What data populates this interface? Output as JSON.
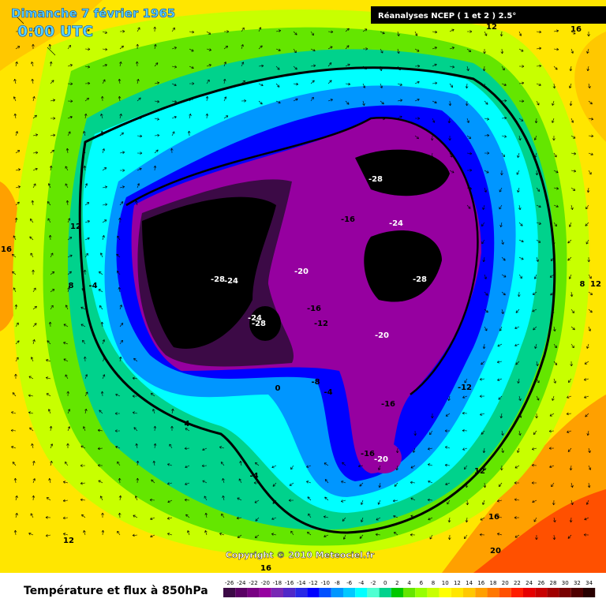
{
  "header": {
    "date": "Dimanche 7 février 1965",
    "time": "0:00 UTC",
    "source": "Réanalyses NCEP ( 1 et 2 ) 2.5°"
  },
  "copyright": "Copyright © 2010 Meteociel.fr",
  "footer_title": "Température et flux à 850hPa",
  "contour_labels": [
    -28,
    -16,
    -24,
    -28,
    -24,
    -20,
    -28,
    -16,
    -24,
    -28,
    -12,
    -20,
    -12,
    -16,
    -8,
    -4,
    0,
    4,
    -4,
    -16,
    -20,
    12,
    16,
    12,
    16,
    8,
    -4,
    8,
    12,
    12,
    16,
    20,
    12,
    16
  ],
  "colorbar": {
    "values": [
      -26,
      -24,
      -22,
      -20,
      -18,
      -16,
      -14,
      -12,
      -10,
      -8,
      -6,
      -4,
      -2,
      0,
      2,
      4,
      6,
      8,
      10,
      12,
      14,
      16,
      18,
      20,
      22,
      24,
      26,
      28,
      30,
      32,
      34
    ],
    "colors": [
      "#3c0a46",
      "#5a0064",
      "#780082",
      "#9600a0",
      "#7828b4",
      "#5028c8",
      "#2828e6",
      "#0000ff",
      "#0050ff",
      "#0096ff",
      "#00c8ff",
      "#00ffff",
      "#50ffd2",
      "#00d28c",
      "#00c800",
      "#64e600",
      "#96ff00",
      "#c8ff00",
      "#ffff00",
      "#ffe600",
      "#ffc800",
      "#ffa000",
      "#ff7800",
      "#ff5000",
      "#ff1e00",
      "#e60000",
      "#c80000",
      "#a00000",
      "#780000",
      "#500000",
      "#280000"
    ]
  }
}
